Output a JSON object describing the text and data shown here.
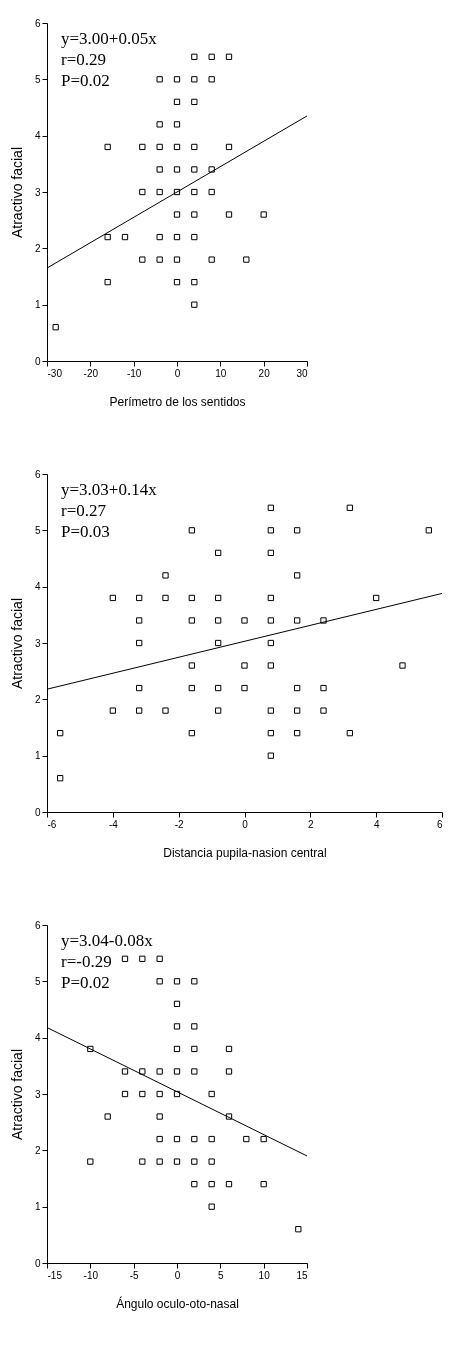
{
  "chart_data": [
    {
      "type": "scatter",
      "xlabel": "Perímetro de los sentidos",
      "ylabel": "Atractivo facial",
      "xlim": [
        -30,
        30
      ],
      "ylim": [
        0,
        6
      ],
      "xticks": [
        -30,
        -20,
        -10,
        0,
        10,
        20,
        30
      ],
      "yticks": [
        0,
        1,
        2,
        3,
        4,
        5,
        6
      ],
      "grid": false,
      "marker": "square",
      "annotations": [
        "y=3.00+0.05x",
        "r=0.29",
        "P=0.02"
      ],
      "series": [
        {
          "type": "scatter",
          "color": "#000000",
          "x": [
            4,
            8,
            12,
            -4,
            0,
            4,
            8,
            0,
            4,
            -4,
            0,
            -16,
            -8,
            -4,
            0,
            4,
            12,
            -4,
            0,
            4,
            8,
            -8,
            -4,
            0,
            4,
            8,
            0,
            4,
            12,
            20,
            -16,
            -12,
            -4,
            0,
            4,
            -8,
            -4,
            0,
            8,
            16,
            -16,
            0,
            4,
            4,
            -28
          ],
          "values": [
            5.4,
            5.4,
            5.4,
            5.0,
            5.0,
            5.0,
            5.0,
            4.6,
            4.6,
            4.2,
            4.2,
            3.8,
            3.8,
            3.8,
            3.8,
            3.8,
            3.8,
            3.4,
            3.4,
            3.4,
            3.4,
            3.0,
            3.0,
            3.0,
            3.0,
            3.0,
            2.6,
            2.6,
            2.6,
            2.6,
            2.2,
            2.2,
            2.2,
            2.2,
            2.2,
            1.8,
            1.8,
            1.8,
            1.8,
            1.8,
            1.4,
            1.4,
            1.4,
            1.0,
            0.6
          ]
        },
        {
          "type": "line",
          "color": "#000000",
          "marker": "none",
          "line_style": "solid",
          "x": [
            -30,
            30
          ],
          "values": [
            1.65,
            4.35
          ]
        }
      ]
    },
    {
      "type": "scatter",
      "xlabel": "Distancia pupila-nasion central",
      "ylabel": "Atractivo facial",
      "xlim": [
        -6,
        6
      ],
      "ylim": [
        0,
        6
      ],
      "xticks": [
        -6,
        -4,
        -2,
        0,
        2,
        4,
        6
      ],
      "yticks": [
        0,
        1,
        2,
        3,
        4,
        5,
        6
      ],
      "grid": false,
      "marker": "square",
      "annotations": [
        "y=3.03+0.14x",
        "r=0.27",
        "P=0.03"
      ],
      "series": [
        {
          "type": "scatter",
          "color": "#000000",
          "x": [
            0.8,
            3.2,
            -1.6,
            0.8,
            1.6,
            5.6,
            -0.8,
            0.8,
            -2.4,
            1.6,
            -4,
            -3.2,
            -2.4,
            -1.6,
            -0.8,
            0.8,
            4.0,
            -3.2,
            -1.6,
            -0.8,
            0,
            0.8,
            1.6,
            2.4,
            -3.2,
            -0.8,
            0.8,
            -1.6,
            0,
            0.8,
            4.8,
            -3.2,
            -1.6,
            -0.8,
            0,
            1.6,
            2.4,
            -4,
            -3.2,
            -2.4,
            -0.8,
            0.8,
            1.6,
            2.4,
            -5.6,
            -1.6,
            0.8,
            1.6,
            3.2,
            0.8,
            -5.6
          ],
          "values": [
            5.4,
            5.4,
            5.0,
            5.0,
            5.0,
            5.0,
            4.6,
            4.6,
            4.2,
            4.2,
            3.8,
            3.8,
            3.8,
            3.8,
            3.8,
            3.8,
            3.8,
            3.4,
            3.4,
            3.4,
            3.4,
            3.4,
            3.4,
            3.4,
            3.0,
            3.0,
            3.0,
            2.6,
            2.6,
            2.6,
            2.6,
            2.2,
            2.2,
            2.2,
            2.2,
            2.2,
            2.2,
            1.8,
            1.8,
            1.8,
            1.8,
            1.8,
            1.8,
            1.8,
            1.4,
            1.4,
            1.4,
            1.4,
            1.4,
            1.0,
            0.6
          ]
        },
        {
          "type": "line",
          "color": "#000000",
          "marker": "none",
          "line_style": "solid",
          "x": [
            -6,
            6
          ],
          "values": [
            2.18,
            3.88
          ]
        }
      ]
    },
    {
      "type": "scatter",
      "xlabel": "Ángulo oculo-oto-nasal",
      "ylabel": "Atractivo facial",
      "xlim": [
        -15,
        15
      ],
      "ylim": [
        0,
        6
      ],
      "xticks": [
        -15,
        -10,
        -5,
        0,
        5,
        10,
        15
      ],
      "yticks": [
        0,
        1,
        2,
        3,
        4,
        5,
        6
      ],
      "grid": false,
      "marker": "square",
      "annotations": [
        "y=3.04-0.08x",
        "r=-0.29",
        "P=0.02"
      ],
      "series": [
        {
          "type": "scatter",
          "color": "#000000",
          "x": [
            -6,
            -4,
            -2,
            -2,
            0,
            2,
            0,
            0,
            2,
            -10,
            0,
            2,
            6,
            -6,
            -4,
            -2,
            0,
            2,
            6,
            -6,
            -4,
            -2,
            0,
            4,
            -8,
            -2,
            6,
            -2,
            0,
            2,
            4,
            8,
            10,
            -10,
            -4,
            -2,
            0,
            2,
            4,
            2,
            4,
            6,
            10,
            4,
            14
          ],
          "values": [
            5.4,
            5.4,
            5.4,
            5.0,
            5.0,
            5.0,
            4.6,
            4.2,
            4.2,
            3.8,
            3.8,
            3.8,
            3.8,
            3.4,
            3.4,
            3.4,
            3.4,
            3.4,
            3.4,
            3.0,
            3.0,
            3.0,
            3.0,
            3.0,
            2.6,
            2.6,
            2.6,
            2.2,
            2.2,
            2.2,
            2.2,
            2.2,
            2.2,
            1.8,
            1.8,
            1.8,
            1.8,
            1.8,
            1.8,
            1.4,
            1.4,
            1.4,
            1.4,
            1.0,
            0.6
          ]
        },
        {
          "type": "line",
          "color": "#000000",
          "marker": "none",
          "line_style": "solid",
          "x": [
            -15,
            15
          ],
          "values": [
            4.18,
            1.9
          ]
        }
      ]
    }
  ]
}
